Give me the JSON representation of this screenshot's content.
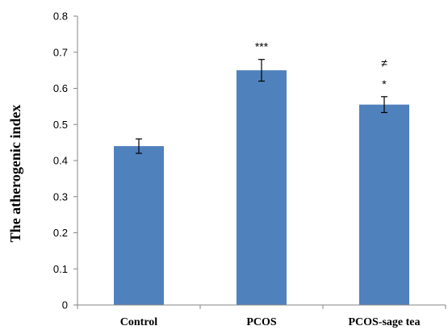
{
  "chart_data": {
    "type": "bar",
    "categories": [
      "Control",
      "PCOS",
      "PCOS-sage tea"
    ],
    "values": [
      0.44,
      0.65,
      0.555
    ],
    "errors": [
      0.02,
      0.03,
      0.022
    ],
    "annotations": [
      [],
      [
        "***"
      ],
      [
        "*",
        "≠"
      ]
    ],
    "ylabel": "The atherogenic index",
    "xlabel": "",
    "ylim": [
      0,
      0.8
    ],
    "yticks": [
      "0",
      "0.1",
      "0.2",
      "0.3",
      "0.4",
      "0.5",
      "0.6",
      "0.7",
      "0.8"
    ],
    "bar_color": "#4f81bd",
    "grid": false
  }
}
